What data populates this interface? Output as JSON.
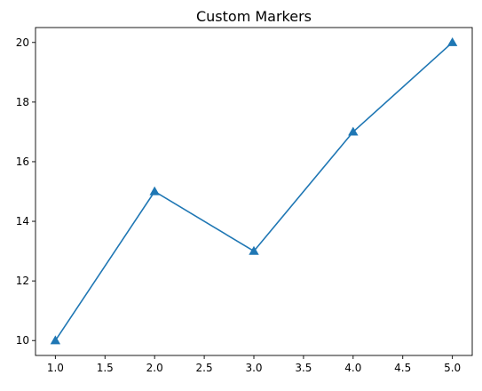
{
  "chart_data": {
    "type": "line",
    "title": "Custom Markers",
    "xlabel": "",
    "ylabel": "",
    "x": [
      1,
      2,
      3,
      4,
      5
    ],
    "series": [
      {
        "values": [
          10,
          15,
          13,
          17,
          20
        ],
        "color": "#1f77b4",
        "marker": "triangle-up"
      }
    ],
    "xlim": [
      0.8,
      5.2
    ],
    "ylim": [
      9.5,
      20.5
    ],
    "xticks": [
      1.0,
      1.5,
      2.0,
      2.5,
      3.0,
      3.5,
      4.0,
      4.5,
      5.0
    ],
    "yticks": [
      10,
      12,
      14,
      16,
      18,
      20
    ],
    "grid": false,
    "legend": "none"
  }
}
